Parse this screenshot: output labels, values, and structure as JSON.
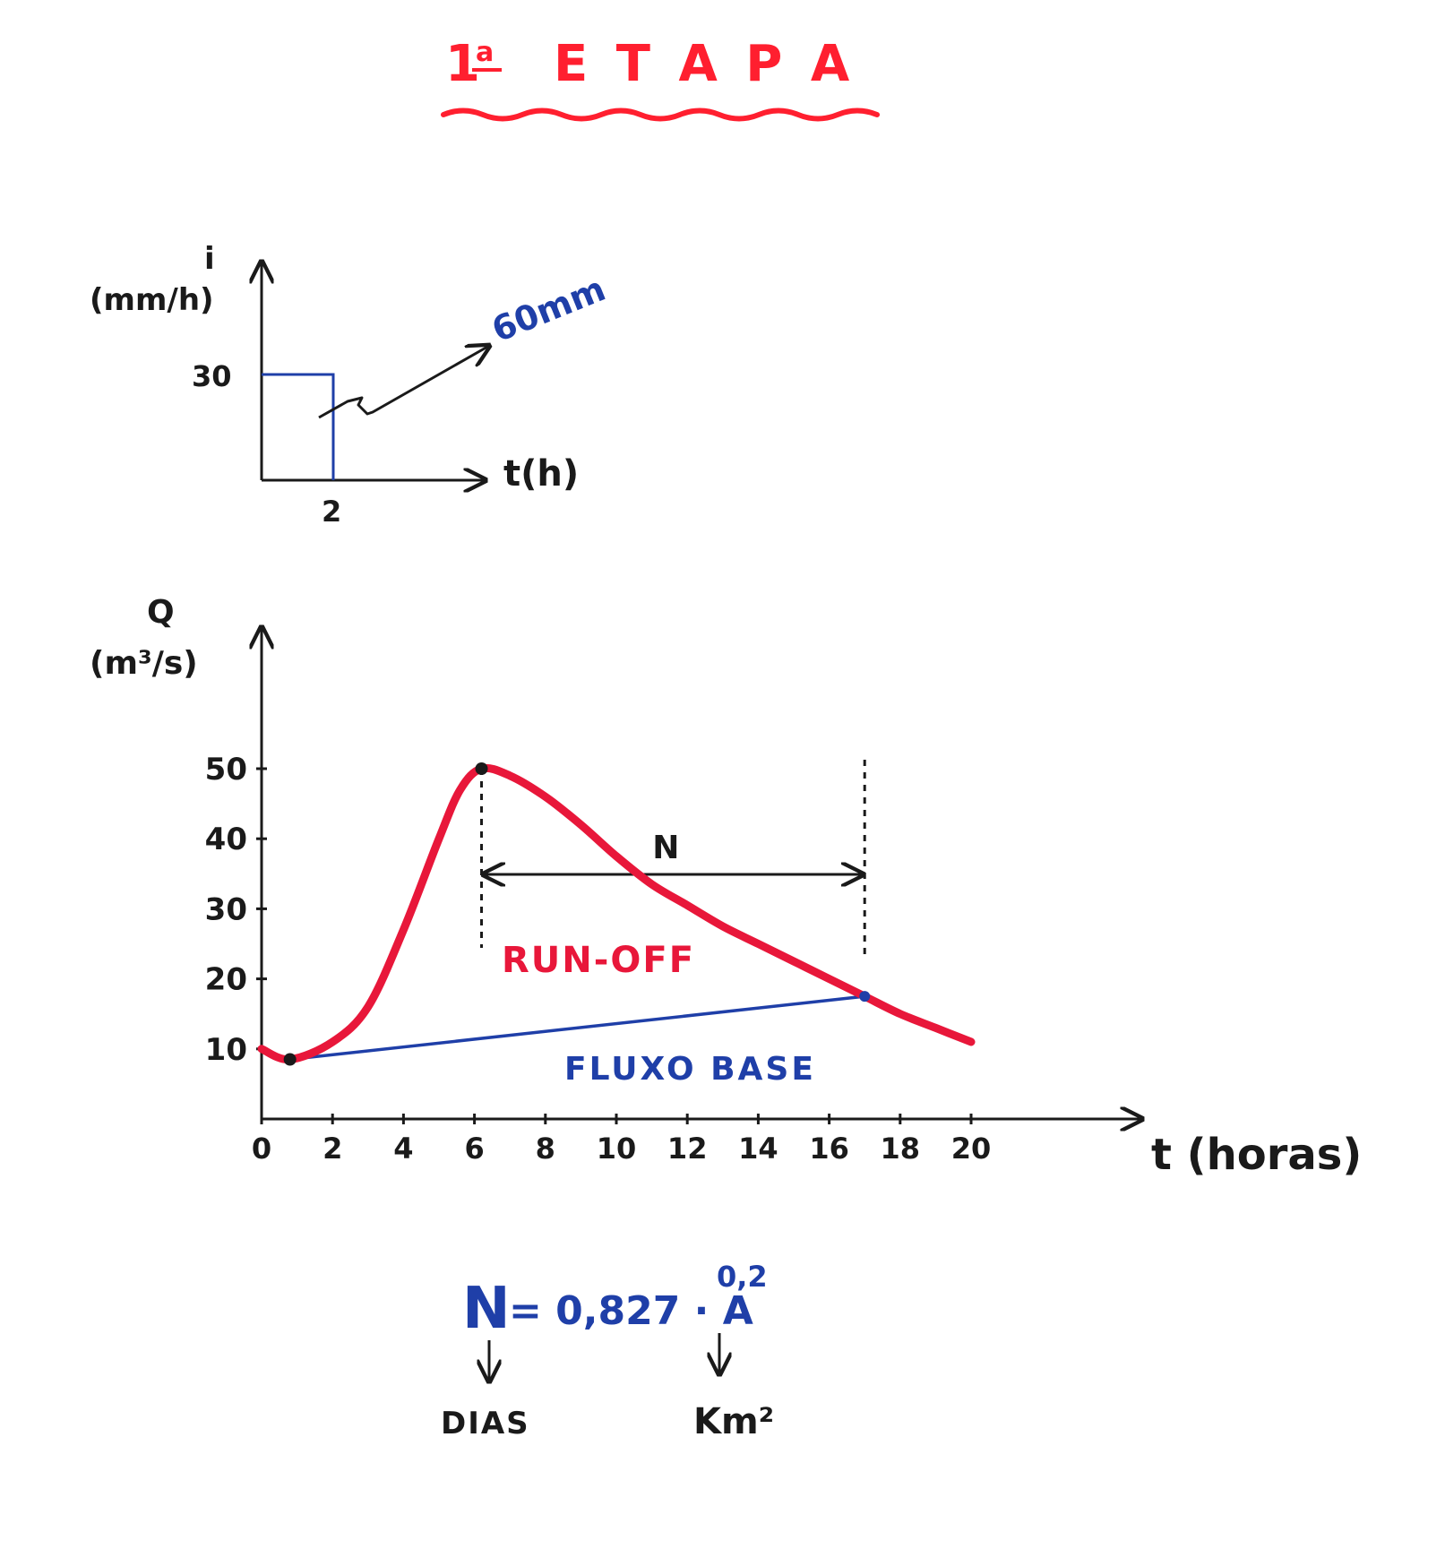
{
  "title": {
    "prefix": "1",
    "ordinal": "a",
    "word": "E T A P A"
  },
  "colors": {
    "red": "#e8173a",
    "blue": "#1f3fa8",
    "black": "#1a1a1a",
    "title": "#ff1f2f"
  },
  "hyetograph": {
    "y_label": "i",
    "y_unit": "(mm/h)",
    "y_tick": "30",
    "x_label": "t(h)",
    "x_tick": "2",
    "annotation": "60mm"
  },
  "hydrograph": {
    "y_label": "Q",
    "y_unit": "(m³/s)",
    "x_label": "t (horas)",
    "y_ticks": [
      "50",
      "40",
      "30",
      "20",
      "10"
    ],
    "x_ticks": [
      "0",
      "2",
      "4",
      "6",
      "8",
      "10",
      "12",
      "14",
      "16",
      "18",
      "20"
    ],
    "interval_label": "N",
    "runoff_label": "RUN-OFF",
    "baseflow_label": "FLUXO BASE"
  },
  "chart_data": [
    {
      "type": "bar",
      "xlabel": "t(h)",
      "ylabel": "i (mm/h)",
      "x_range": [
        0,
        2
      ],
      "values": [
        30
      ],
      "annotation": "60mm"
    },
    {
      "type": "line",
      "xlabel": "t (horas)",
      "ylabel": "Q (m³/s)",
      "xlim": [
        0,
        20
      ],
      "ylim": [
        0,
        50
      ],
      "series": [
        {
          "name": "RUN-OFF",
          "x": [
            0,
            0.8,
            2,
            3,
            4,
            5,
            5.6,
            6.2,
            7,
            8,
            9,
            10,
            11,
            12,
            13,
            14,
            15,
            16,
            17,
            18,
            19,
            20
          ],
          "y": [
            10,
            8.5,
            11,
            16,
            27,
            40,
            47,
            50,
            49,
            46,
            42,
            37.5,
            33.5,
            30.5,
            27.5,
            25,
            22.5,
            20,
            17.5,
            15,
            13,
            11
          ]
        },
        {
          "name": "FLUXO BASE",
          "x": [
            0.8,
            17
          ],
          "y": [
            8.5,
            17.5
          ]
        }
      ],
      "annotations": [
        "N",
        "peak at t ≈ 6.2 h, Q = 50",
        "recession end at t ≈ 17 h"
      ]
    }
  ],
  "formula": {
    "lhs": "N",
    "rhs": "= 0,827 · A",
    "exponent": "0,2",
    "n_unit": "DIAS",
    "a_unit": "Km²"
  }
}
